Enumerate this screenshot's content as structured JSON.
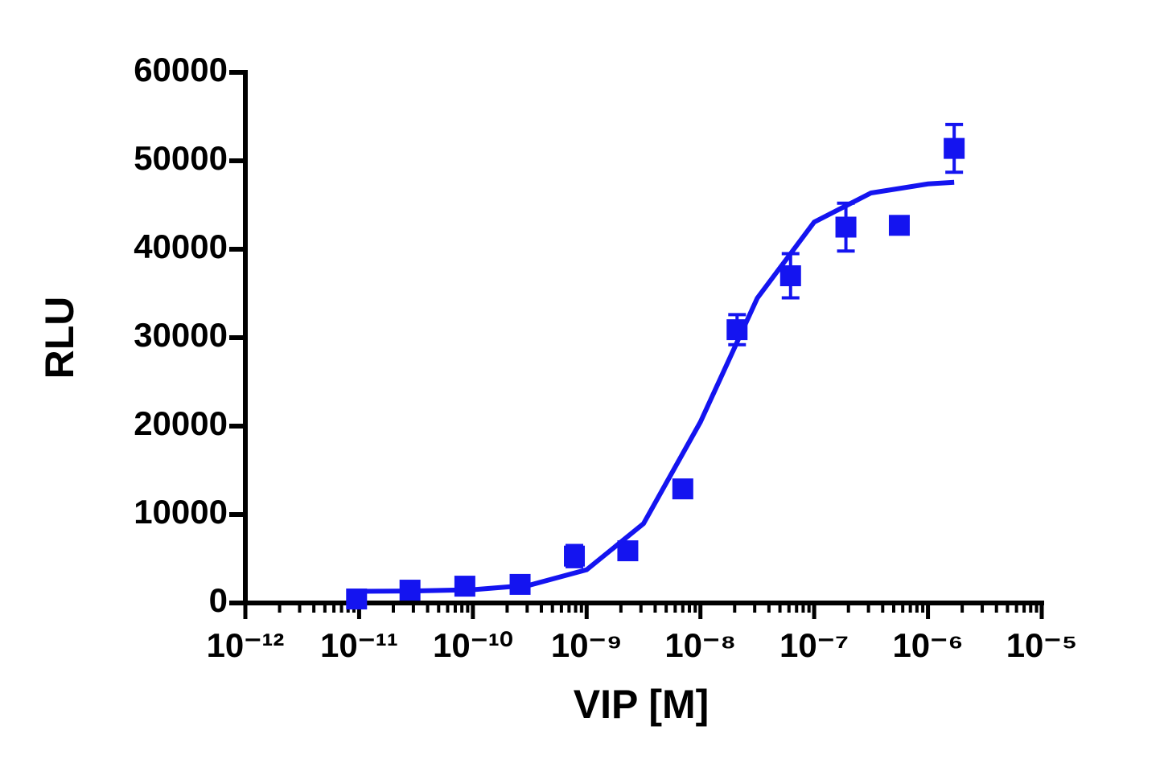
{
  "chart_data": {
    "type": "scatter",
    "xlabel": "VIP [M]",
    "ylabel": "RLU",
    "xscale": "log",
    "xlim": [
      1e-12,
      1e-05
    ],
    "xticks": [
      {
        "value": 1e-12,
        "label": "10⁻¹²"
      },
      {
        "value": 1e-11,
        "label": "10⁻¹¹"
      },
      {
        "value": 1e-10,
        "label": "10⁻¹⁰"
      },
      {
        "value": 1e-09,
        "label": "10⁻⁹"
      },
      {
        "value": 1e-08,
        "label": "10⁻⁸"
      },
      {
        "value": 1e-07,
        "label": "10⁻⁷"
      },
      {
        "value": 1e-06,
        "label": "10⁻⁶"
      },
      {
        "value": 1e-05,
        "label": "10⁻⁵"
      }
    ],
    "minor_ticks": true,
    "ylim": [
      0,
      60000
    ],
    "yticks": [
      0,
      10000,
      20000,
      30000,
      40000,
      50000,
      60000
    ],
    "series": [
      {
        "style": "points",
        "color": "#1414f0",
        "x": [
          9.5e-12,
          2.8e-11,
          8.5e-11,
          2.6e-10,
          7.8e-10,
          2.3e-09,
          7e-09,
          2.1e-08,
          6.2e-08,
          1.9e-07,
          5.6e-07,
          1.7e-06
        ],
        "values": [
          450,
          1450,
          1900,
          2100,
          5300,
          5900,
          12900,
          30900,
          37000,
          42500,
          42700,
          51400
        ],
        "errors": [
          null,
          null,
          null,
          null,
          1200,
          null,
          null,
          1700,
          2500,
          2700,
          null,
          2700
        ]
      },
      {
        "style": "line",
        "color": "#1414f0",
        "x": [
          1e-11,
          3.16e-11,
          1e-10,
          3.16e-10,
          1e-09,
          3.16e-09,
          1e-08,
          3.16e-08,
          1e-07,
          3.16e-07,
          1e-06,
          1.7e-06
        ],
        "values": [
          1316,
          1358,
          1505,
          2020,
          3754,
          8973,
          20467,
          34467,
          43071,
          46363,
          47385,
          47568
        ]
      }
    ]
  }
}
